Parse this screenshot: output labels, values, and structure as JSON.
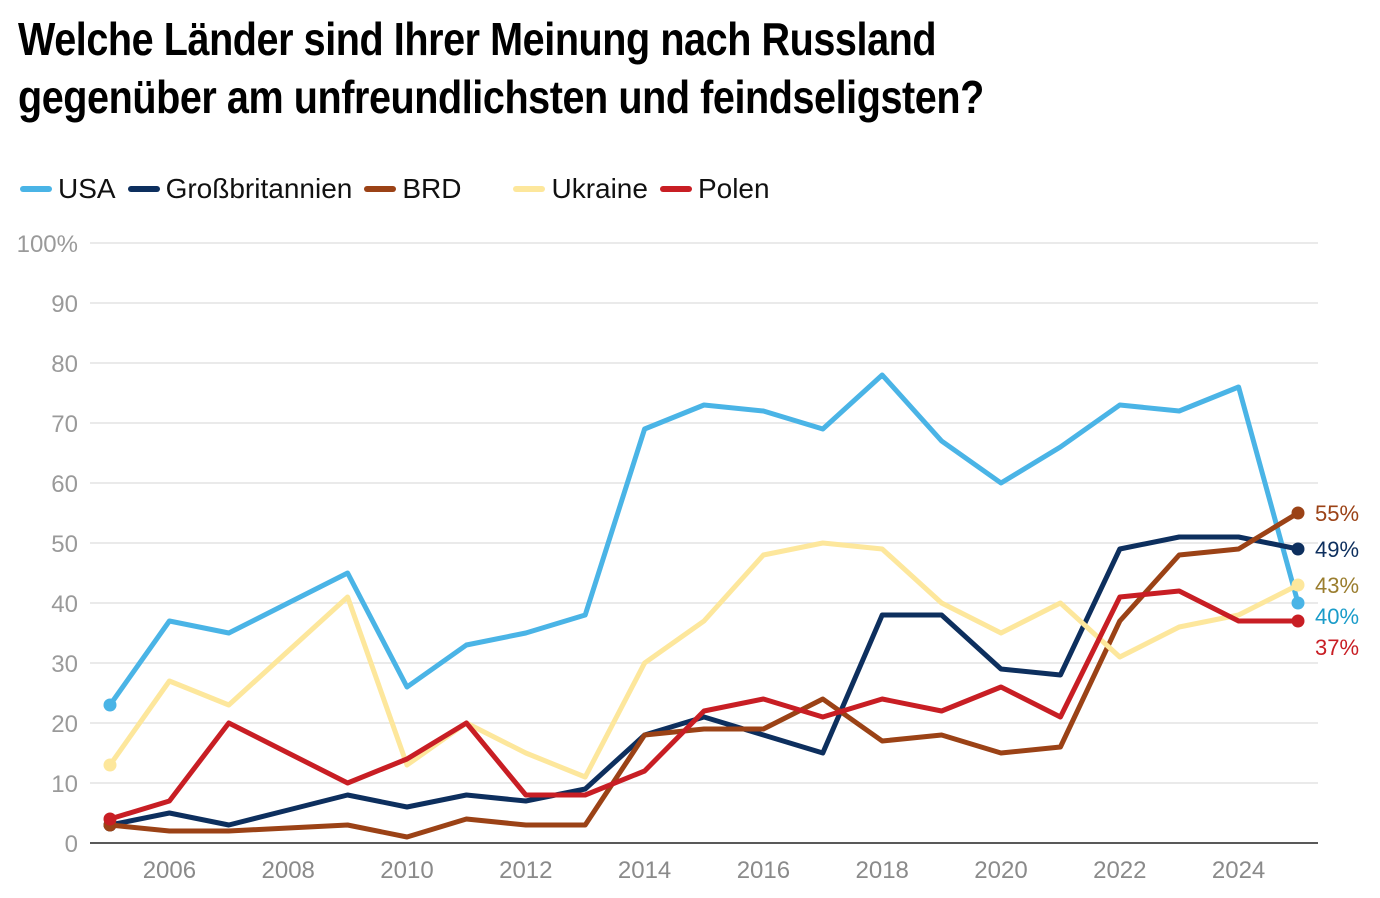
{
  "title_lines": [
    "Welche Länder sind Ihrer Meinung nach Russland",
    "gegenüber am unfreundlichsten und feindseligsten?"
  ],
  "chart_data": {
    "type": "line",
    "title": "Welche Länder sind Ihrer Meinung nach Russland gegenüber am unfreundlichsten und feindseligsten?",
    "x": [
      2005,
      2006,
      2007,
      2008,
      2009,
      2010,
      2011,
      2012,
      2013,
      2014,
      2015,
      2016,
      2017,
      2018,
      2019,
      2020,
      2021,
      2022,
      2023,
      2024,
      2025
    ],
    "x_tick_labels": [
      "2006",
      "2008",
      "2010",
      "2012",
      "2014",
      "2016",
      "2018",
      "2020",
      "2022",
      "2024"
    ],
    "x_ticks": [
      2006,
      2008,
      2010,
      2012,
      2014,
      2016,
      2018,
      2020,
      2022,
      2024
    ],
    "y_tick_labels": [
      "0",
      "10",
      "20",
      "30",
      "40",
      "50",
      "60",
      "70",
      "80",
      "90",
      "100%"
    ],
    "y_ticks": [
      0,
      10,
      20,
      30,
      40,
      50,
      60,
      70,
      80,
      90,
      100
    ],
    "ylim": [
      0,
      100
    ],
    "xlim": [
      2005,
      2025
    ],
    "grid": "horizontal",
    "legend_position": "top-left",
    "series": [
      {
        "name": "USA",
        "color": "#4ab4e6",
        "label_color": "#1a9cc9",
        "end_label": "40%",
        "values": [
          23,
          37,
          35,
          40,
          45,
          26,
          33,
          35,
          38,
          69,
          73,
          72,
          69,
          78,
          67,
          60,
          66,
          73,
          72,
          76,
          40
        ]
      },
      {
        "name": "Großbritannien",
        "color": "#0d2f5e",
        "label_color": "#0d2f5e",
        "end_label": "49%",
        "values": [
          3,
          5,
          3,
          5.5,
          8,
          6,
          8,
          7,
          9,
          18,
          21,
          18,
          15,
          38,
          38,
          29,
          28,
          49,
          51,
          51,
          49
        ]
      },
      {
        "name": "BRD",
        "color": "#9b4216",
        "label_color": "#9b4216",
        "end_label": "55%",
        "values": [
          3,
          2,
          2,
          2.5,
          3,
          1,
          4,
          3,
          3,
          18,
          19,
          19,
          24,
          17,
          18,
          15,
          16,
          37,
          48,
          49,
          55
        ]
      },
      {
        "name": "Ukraine",
        "color": "#fde79c",
        "label_color": "#9a7d2e",
        "end_label": "43%",
        "values": [
          13,
          27,
          23,
          32,
          41,
          13,
          20,
          15,
          11,
          30,
          37,
          48,
          50,
          49,
          40,
          35,
          40,
          31,
          36,
          38,
          43
        ]
      },
      {
        "name": "Polen",
        "color": "#c81e24",
        "label_color": "#c81e24",
        "end_label": "37%",
        "values": [
          4,
          7,
          20,
          15,
          10,
          14,
          20,
          8,
          8,
          12,
          22,
          24,
          21,
          24,
          22,
          26,
          21,
          41,
          42,
          37,
          37
        ]
      }
    ]
  }
}
